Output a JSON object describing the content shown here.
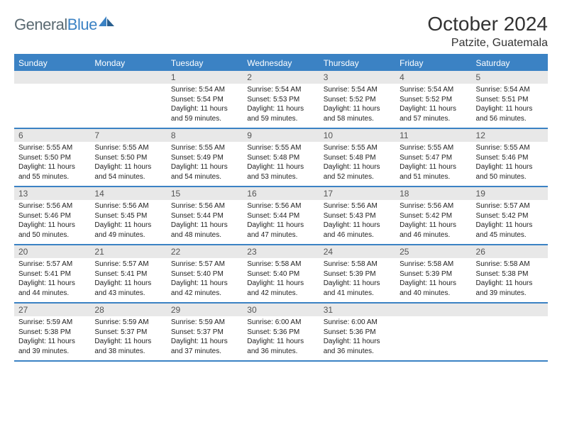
{
  "brand": {
    "part1": "General",
    "part2": "Blue"
  },
  "title": "October 2024",
  "location": "Patzite, Guatemala",
  "colors": {
    "accent": "#3b82c4",
    "dow_bg": "#3b82c4",
    "daynum_bg": "#e8e8e8"
  },
  "dow": [
    "Sunday",
    "Monday",
    "Tuesday",
    "Wednesday",
    "Thursday",
    "Friday",
    "Saturday"
  ],
  "weeks": [
    [
      {
        "n": "",
        "sr": "",
        "ss": "",
        "dl": ""
      },
      {
        "n": "",
        "sr": "",
        "ss": "",
        "dl": ""
      },
      {
        "n": "1",
        "sr": "Sunrise: 5:54 AM",
        "ss": "Sunset: 5:54 PM",
        "dl": "Daylight: 11 hours and 59 minutes."
      },
      {
        "n": "2",
        "sr": "Sunrise: 5:54 AM",
        "ss": "Sunset: 5:53 PM",
        "dl": "Daylight: 11 hours and 59 minutes."
      },
      {
        "n": "3",
        "sr": "Sunrise: 5:54 AM",
        "ss": "Sunset: 5:52 PM",
        "dl": "Daylight: 11 hours and 58 minutes."
      },
      {
        "n": "4",
        "sr": "Sunrise: 5:54 AM",
        "ss": "Sunset: 5:52 PM",
        "dl": "Daylight: 11 hours and 57 minutes."
      },
      {
        "n": "5",
        "sr": "Sunrise: 5:54 AM",
        "ss": "Sunset: 5:51 PM",
        "dl": "Daylight: 11 hours and 56 minutes."
      }
    ],
    [
      {
        "n": "6",
        "sr": "Sunrise: 5:55 AM",
        "ss": "Sunset: 5:50 PM",
        "dl": "Daylight: 11 hours and 55 minutes."
      },
      {
        "n": "7",
        "sr": "Sunrise: 5:55 AM",
        "ss": "Sunset: 5:50 PM",
        "dl": "Daylight: 11 hours and 54 minutes."
      },
      {
        "n": "8",
        "sr": "Sunrise: 5:55 AM",
        "ss": "Sunset: 5:49 PM",
        "dl": "Daylight: 11 hours and 54 minutes."
      },
      {
        "n": "9",
        "sr": "Sunrise: 5:55 AM",
        "ss": "Sunset: 5:48 PM",
        "dl": "Daylight: 11 hours and 53 minutes."
      },
      {
        "n": "10",
        "sr": "Sunrise: 5:55 AM",
        "ss": "Sunset: 5:48 PM",
        "dl": "Daylight: 11 hours and 52 minutes."
      },
      {
        "n": "11",
        "sr": "Sunrise: 5:55 AM",
        "ss": "Sunset: 5:47 PM",
        "dl": "Daylight: 11 hours and 51 minutes."
      },
      {
        "n": "12",
        "sr": "Sunrise: 5:55 AM",
        "ss": "Sunset: 5:46 PM",
        "dl": "Daylight: 11 hours and 50 minutes."
      }
    ],
    [
      {
        "n": "13",
        "sr": "Sunrise: 5:56 AM",
        "ss": "Sunset: 5:46 PM",
        "dl": "Daylight: 11 hours and 50 minutes."
      },
      {
        "n": "14",
        "sr": "Sunrise: 5:56 AM",
        "ss": "Sunset: 5:45 PM",
        "dl": "Daylight: 11 hours and 49 minutes."
      },
      {
        "n": "15",
        "sr": "Sunrise: 5:56 AM",
        "ss": "Sunset: 5:44 PM",
        "dl": "Daylight: 11 hours and 48 minutes."
      },
      {
        "n": "16",
        "sr": "Sunrise: 5:56 AM",
        "ss": "Sunset: 5:44 PM",
        "dl": "Daylight: 11 hours and 47 minutes."
      },
      {
        "n": "17",
        "sr": "Sunrise: 5:56 AM",
        "ss": "Sunset: 5:43 PM",
        "dl": "Daylight: 11 hours and 46 minutes."
      },
      {
        "n": "18",
        "sr": "Sunrise: 5:56 AM",
        "ss": "Sunset: 5:42 PM",
        "dl": "Daylight: 11 hours and 46 minutes."
      },
      {
        "n": "19",
        "sr": "Sunrise: 5:57 AM",
        "ss": "Sunset: 5:42 PM",
        "dl": "Daylight: 11 hours and 45 minutes."
      }
    ],
    [
      {
        "n": "20",
        "sr": "Sunrise: 5:57 AM",
        "ss": "Sunset: 5:41 PM",
        "dl": "Daylight: 11 hours and 44 minutes."
      },
      {
        "n": "21",
        "sr": "Sunrise: 5:57 AM",
        "ss": "Sunset: 5:41 PM",
        "dl": "Daylight: 11 hours and 43 minutes."
      },
      {
        "n": "22",
        "sr": "Sunrise: 5:57 AM",
        "ss": "Sunset: 5:40 PM",
        "dl": "Daylight: 11 hours and 42 minutes."
      },
      {
        "n": "23",
        "sr": "Sunrise: 5:58 AM",
        "ss": "Sunset: 5:40 PM",
        "dl": "Daylight: 11 hours and 42 minutes."
      },
      {
        "n": "24",
        "sr": "Sunrise: 5:58 AM",
        "ss": "Sunset: 5:39 PM",
        "dl": "Daylight: 11 hours and 41 minutes."
      },
      {
        "n": "25",
        "sr": "Sunrise: 5:58 AM",
        "ss": "Sunset: 5:39 PM",
        "dl": "Daylight: 11 hours and 40 minutes."
      },
      {
        "n": "26",
        "sr": "Sunrise: 5:58 AM",
        "ss": "Sunset: 5:38 PM",
        "dl": "Daylight: 11 hours and 39 minutes."
      }
    ],
    [
      {
        "n": "27",
        "sr": "Sunrise: 5:59 AM",
        "ss": "Sunset: 5:38 PM",
        "dl": "Daylight: 11 hours and 39 minutes."
      },
      {
        "n": "28",
        "sr": "Sunrise: 5:59 AM",
        "ss": "Sunset: 5:37 PM",
        "dl": "Daylight: 11 hours and 38 minutes."
      },
      {
        "n": "29",
        "sr": "Sunrise: 5:59 AM",
        "ss": "Sunset: 5:37 PM",
        "dl": "Daylight: 11 hours and 37 minutes."
      },
      {
        "n": "30",
        "sr": "Sunrise: 6:00 AM",
        "ss": "Sunset: 5:36 PM",
        "dl": "Daylight: 11 hours and 36 minutes."
      },
      {
        "n": "31",
        "sr": "Sunrise: 6:00 AM",
        "ss": "Sunset: 5:36 PM",
        "dl": "Daylight: 11 hours and 36 minutes."
      },
      {
        "n": "",
        "sr": "",
        "ss": "",
        "dl": ""
      },
      {
        "n": "",
        "sr": "",
        "ss": "",
        "dl": ""
      }
    ]
  ]
}
